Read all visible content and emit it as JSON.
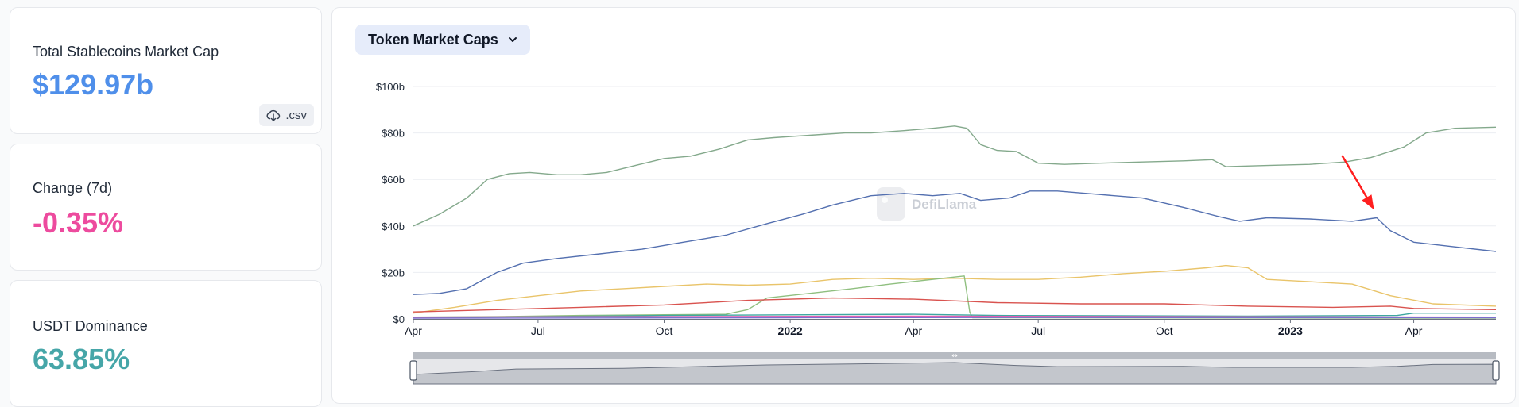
{
  "stats": {
    "total": {
      "label": "Total Stablecoins Market Cap",
      "value": "$129.97b",
      "color": "#4f8fea"
    },
    "change": {
      "label": "Change (7d)",
      "value": "-0.35%",
      "color": "#ed4b9e"
    },
    "dominance": {
      "label": "USDT Dominance",
      "value": "63.85%",
      "color": "#46a6a8"
    },
    "csv_label": ".csv",
    "csv_icon": "cloud-download-icon"
  },
  "chart_panel": {
    "dropdown_label": "Token Market Caps",
    "dropdown_icon": "chevron-down-icon",
    "watermark": "DefiLlama"
  },
  "chart_data": {
    "type": "line",
    "title": "",
    "xlabel": "",
    "ylabel": "",
    "x_range": [
      "2021-04-01",
      "2023-05-31"
    ],
    "ylim": [
      0,
      100
    ],
    "y_ticks": [
      0,
      20,
      40,
      60,
      80,
      100
    ],
    "y_tick_labels": [
      "$0",
      "$20b",
      "$40b",
      "$60b",
      "$80b",
      "$100b"
    ],
    "x_ticks": [
      {
        "date": "2021-04-01",
        "label": "Apr",
        "bold": false
      },
      {
        "date": "2021-07-01",
        "label": "Jul",
        "bold": false
      },
      {
        "date": "2021-10-01",
        "label": "Oct",
        "bold": false
      },
      {
        "date": "2022-01-01",
        "label": "2022",
        "bold": true
      },
      {
        "date": "2022-04-01",
        "label": "Apr",
        "bold": false
      },
      {
        "date": "2022-07-01",
        "label": "Jul",
        "bold": false
      },
      {
        "date": "2022-10-01",
        "label": "Oct",
        "bold": false
      },
      {
        "date": "2023-01-01",
        "label": "2023",
        "bold": true
      },
      {
        "date": "2023-04-01",
        "label": "Apr",
        "bold": false
      }
    ],
    "grid": "horizontal",
    "annotation": {
      "type": "arrow",
      "color": "#ff1f1f",
      "from": {
        "x": "2023-02-08",
        "y": 70
      },
      "to": {
        "x": "2023-03-03",
        "y": 47
      }
    },
    "brush_label": "↔",
    "series": [
      {
        "color": "#84a98c",
        "points": [
          [
            "2021-04-01",
            40
          ],
          [
            "2021-04-20",
            45
          ],
          [
            "2021-05-10",
            52
          ],
          [
            "2021-05-25",
            60
          ],
          [
            "2021-06-10",
            62.5
          ],
          [
            "2021-06-25",
            63
          ],
          [
            "2021-07-15",
            62
          ],
          [
            "2021-08-01",
            62
          ],
          [
            "2021-08-20",
            63
          ],
          [
            "2021-09-10",
            66
          ],
          [
            "2021-10-01",
            69
          ],
          [
            "2021-10-20",
            70
          ],
          [
            "2021-11-10",
            73
          ],
          [
            "2021-12-01",
            77
          ],
          [
            "2021-12-20",
            78
          ],
          [
            "2022-01-15",
            79
          ],
          [
            "2022-02-10",
            80
          ],
          [
            "2022-03-01",
            80
          ],
          [
            "2022-03-25",
            81
          ],
          [
            "2022-04-15",
            82
          ],
          [
            "2022-05-01",
            83
          ],
          [
            "2022-05-10",
            82
          ],
          [
            "2022-05-20",
            75
          ],
          [
            "2022-06-01",
            72.5
          ],
          [
            "2022-06-15",
            72
          ],
          [
            "2022-07-01",
            67
          ],
          [
            "2022-07-20",
            66.5
          ],
          [
            "2022-08-15",
            67
          ],
          [
            "2022-09-15",
            67.5
          ],
          [
            "2022-10-15",
            68
          ],
          [
            "2022-11-05",
            68.5
          ],
          [
            "2022-11-15",
            65.5
          ],
          [
            "2022-12-15",
            66
          ],
          [
            "2023-01-15",
            66.5
          ],
          [
            "2023-02-10",
            67.5
          ],
          [
            "2023-03-01",
            69.5
          ],
          [
            "2023-03-25",
            74
          ],
          [
            "2023-04-10",
            80
          ],
          [
            "2023-05-01",
            82
          ],
          [
            "2023-05-31",
            82.5
          ]
        ]
      },
      {
        "color": "#5470b0",
        "points": [
          [
            "2021-04-01",
            10.5
          ],
          [
            "2021-04-20",
            11
          ],
          [
            "2021-05-10",
            13
          ],
          [
            "2021-06-01",
            20
          ],
          [
            "2021-06-20",
            24
          ],
          [
            "2021-07-15",
            26
          ],
          [
            "2021-08-15",
            28
          ],
          [
            "2021-09-15",
            30
          ],
          [
            "2021-10-15",
            33
          ],
          [
            "2021-11-15",
            36
          ],
          [
            "2021-12-15",
            41
          ],
          [
            "2022-01-10",
            45
          ],
          [
            "2022-02-01",
            49
          ],
          [
            "2022-03-01",
            53
          ],
          [
            "2022-03-25",
            54
          ],
          [
            "2022-04-15",
            53
          ],
          [
            "2022-05-05",
            54
          ],
          [
            "2022-05-20",
            51
          ],
          [
            "2022-06-10",
            52
          ],
          [
            "2022-06-25",
            55
          ],
          [
            "2022-07-15",
            55
          ],
          [
            "2022-08-15",
            53.5
          ],
          [
            "2022-09-15",
            52
          ],
          [
            "2022-10-15",
            48
          ],
          [
            "2022-11-10",
            44
          ],
          [
            "2022-11-25",
            42
          ],
          [
            "2022-12-15",
            43.5
          ],
          [
            "2023-01-15",
            43
          ],
          [
            "2023-02-15",
            42
          ],
          [
            "2023-03-05",
            43.5
          ],
          [
            "2023-03-15",
            38
          ],
          [
            "2023-04-01",
            33
          ],
          [
            "2023-05-01",
            31
          ],
          [
            "2023-05-31",
            29
          ]
        ]
      },
      {
        "color": "#e9c46a",
        "points": [
          [
            "2021-04-01",
            2.5
          ],
          [
            "2021-05-01",
            5
          ],
          [
            "2021-06-01",
            8
          ],
          [
            "2021-07-01",
            10
          ],
          [
            "2021-08-01",
            12
          ],
          [
            "2021-09-01",
            13
          ],
          [
            "2021-10-01",
            14
          ],
          [
            "2021-11-01",
            15
          ],
          [
            "2021-12-01",
            14.5
          ],
          [
            "2022-01-01",
            15
          ],
          [
            "2022-02-01",
            17
          ],
          [
            "2022-03-01",
            17.5
          ],
          [
            "2022-04-01",
            17
          ],
          [
            "2022-05-01",
            17.5
          ],
          [
            "2022-06-01",
            17
          ],
          [
            "2022-07-01",
            17
          ],
          [
            "2022-08-01",
            18
          ],
          [
            "2022-09-01",
            19.5
          ],
          [
            "2022-10-01",
            20.5
          ],
          [
            "2022-11-01",
            22
          ],
          [
            "2022-11-15",
            23
          ],
          [
            "2022-12-01",
            22
          ],
          [
            "2022-12-15",
            17
          ],
          [
            "2023-01-15",
            16
          ],
          [
            "2023-02-15",
            15
          ],
          [
            "2023-03-15",
            10
          ],
          [
            "2023-04-15",
            6.5
          ],
          [
            "2023-05-31",
            5.5
          ]
        ]
      },
      {
        "color": "#8fbf7f",
        "points": [
          [
            "2021-04-01",
            0.8
          ],
          [
            "2021-06-01",
            1
          ],
          [
            "2021-08-01",
            1.5
          ],
          [
            "2021-10-01",
            1.8
          ],
          [
            "2021-11-15",
            2
          ],
          [
            "2021-12-01",
            4
          ],
          [
            "2021-12-15",
            9
          ],
          [
            "2022-01-15",
            11
          ],
          [
            "2022-02-15",
            13
          ],
          [
            "2022-03-15",
            15
          ],
          [
            "2022-04-15",
            17
          ],
          [
            "2022-05-08",
            18.5
          ],
          [
            "2022-05-12",
            3
          ],
          [
            "2022-05-14",
            0.5
          ],
          [
            "2023-05-31",
            0.3
          ]
        ]
      },
      {
        "color": "#d9534f",
        "points": [
          [
            "2021-04-01",
            3
          ],
          [
            "2021-06-01",
            4
          ],
          [
            "2021-08-01",
            5
          ],
          [
            "2021-10-01",
            6
          ],
          [
            "2021-12-01",
            8
          ],
          [
            "2022-02-01",
            9
          ],
          [
            "2022-04-01",
            8.5
          ],
          [
            "2022-06-01",
            7
          ],
          [
            "2022-08-01",
            6.5
          ],
          [
            "2022-10-01",
            6.5
          ],
          [
            "2022-12-01",
            5.5
          ],
          [
            "2023-02-01",
            5
          ],
          [
            "2023-03-15",
            5.5
          ],
          [
            "2023-04-01",
            4.5
          ],
          [
            "2023-05-31",
            4
          ]
        ]
      },
      {
        "color": "#3fa7a0",
        "points": [
          [
            "2021-04-01",
            0.5
          ],
          [
            "2021-10-01",
            1.5
          ],
          [
            "2022-04-01",
            2
          ],
          [
            "2022-06-01",
            1.5
          ],
          [
            "2022-12-01",
            1.2
          ],
          [
            "2023-03-20",
            1.5
          ],
          [
            "2023-04-01",
            2.5
          ],
          [
            "2023-05-31",
            2.5
          ]
        ]
      },
      {
        "color": "#e05fb0",
        "points": [
          [
            "2021-04-01",
            0.8
          ],
          [
            "2021-10-01",
            1
          ],
          [
            "2022-04-01",
            1.2
          ],
          [
            "2022-10-01",
            1
          ],
          [
            "2023-05-31",
            0.8
          ]
        ]
      },
      {
        "color": "#7b6fd0",
        "points": [
          [
            "2021-04-01",
            0.3
          ],
          [
            "2022-01-01",
            0.5
          ],
          [
            "2022-07-01",
            0.6
          ],
          [
            "2023-05-31",
            0.5
          ]
        ]
      }
    ],
    "brush_series": {
      "color": "#9aa1aa",
      "points": [
        [
          "2021-04-01",
          40
        ],
        [
          "2021-05-15",
          52
        ],
        [
          "2021-06-15",
          63
        ],
        [
          "2021-09-01",
          66
        ],
        [
          "2021-12-15",
          80
        ],
        [
          "2022-02-15",
          84
        ],
        [
          "2022-05-01",
          90
        ],
        [
          "2022-05-20",
          85
        ],
        [
          "2022-06-15",
          78
        ],
        [
          "2022-07-15",
          73
        ],
        [
          "2022-10-15",
          74
        ],
        [
          "2022-11-20",
          70
        ],
        [
          "2023-02-15",
          70
        ],
        [
          "2023-03-20",
          74
        ],
        [
          "2023-04-15",
          82
        ],
        [
          "2023-05-31",
          83
        ]
      ]
    }
  }
}
